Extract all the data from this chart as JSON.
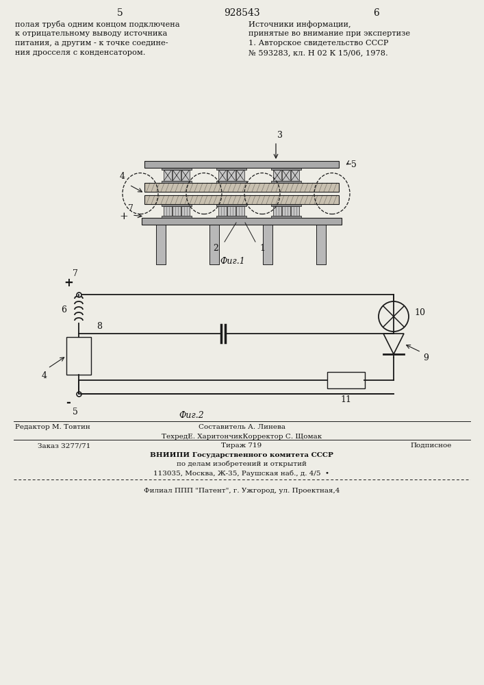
{
  "bg_color": "#eeede6",
  "page_color": "#eeede6",
  "title_page_num_left": "5",
  "title_patent_num": "928543",
  "title_page_num_right": "6",
  "lines_left": [
    "полая труба одним концом подключена",
    "к отрицательному выводу источника",
    "питания, а другим - к точке соедине-",
    "ния дросселя с конденсатором."
  ],
  "lines_right": [
    "Источники информации,",
    "принятые во внимание при экспертизе",
    "1. Авторское свидетельство СССР",
    "№ 593283, кл. Н 02 К 15/06, 1978."
  ],
  "fig1_caption": "Фиг.1",
  "fig2_caption": "Фиг.2",
  "footer_editor": "Редактор М. Товтин",
  "footer_compiler": "Составитель А. Линева",
  "footer_techred": "ТехредЕ. ХаритончикКорректор С. Щомак",
  "footer_order": "Заказ 3277/71",
  "footer_print": "Тираж 719",
  "footer_sub": "Подписное",
  "footer_vniiipi": "ВНИИПИ Государственного комитета СССР",
  "footer_dept": "по делам изобретений и открытий",
  "footer_addr": "113035, Москва, Ж-35, Раушская наб., д. 4/5  •",
  "footer_filial": "Филиал ППП \"Патент\", г. Ужгород, ул. Проектная,4",
  "lc": "#1a1a1a",
  "tc": "#111111",
  "plate_color": "#c8c0b0",
  "roller_color": "#c5c5c5",
  "bar_color": "#aaaaaa",
  "leg_color": "#b8b8b8"
}
